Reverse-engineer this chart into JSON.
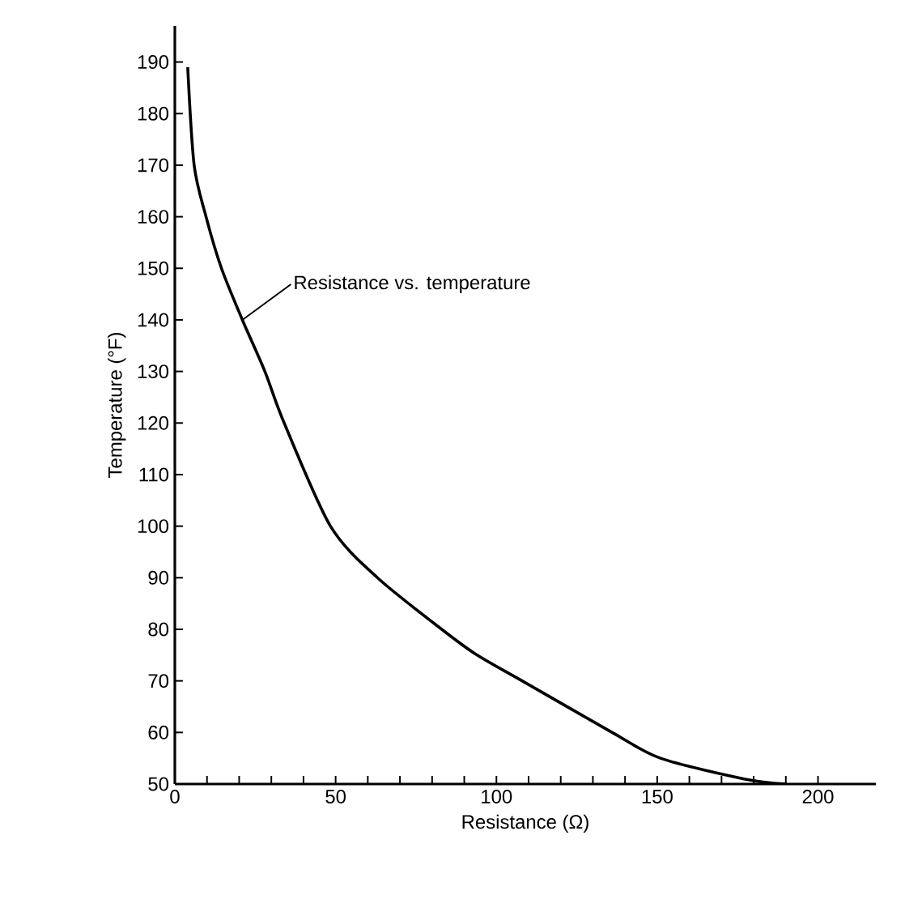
{
  "chart_data": {
    "type": "line",
    "xlabel": "Resistance (Ω)",
    "ylabel": "Temperature (°F)",
    "x": [
      4,
      6,
      9.7,
      14.5,
      21,
      28,
      34,
      48.4,
      63,
      83,
      94,
      108,
      136,
      151,
      177,
      190
    ],
    "series": [
      {
        "color": "#000000",
        "values": [
          189,
          170,
          160,
          150,
          140,
          130,
          120,
          100,
          90,
          80,
          75,
          70,
          60,
          55,
          51,
          50
        ]
      }
    ],
    "xlim": [
      0,
      218
    ],
    "ylim": [
      50,
      197
    ],
    "xticks": [
      0,
      {
        "value": 10,
        "label": null
      },
      {
        "value": 20,
        "label": null
      },
      {
        "value": 30,
        "label": null
      },
      {
        "value": 40,
        "label": null
      },
      50,
      {
        "value": 60,
        "label": null
      },
      {
        "value": 70,
        "label": null
      },
      {
        "value": 80,
        "label": null
      },
      {
        "value": 90,
        "label": null
      },
      100,
      {
        "value": 110,
        "label": null
      },
      {
        "value": 120,
        "label": null
      },
      {
        "value": 130,
        "label": null
      },
      {
        "value": 140,
        "label": null
      },
      150,
      {
        "value": 160,
        "label": null
      },
      {
        "value": 170,
        "label": null
      },
      {
        "value": 180,
        "label": null
      },
      {
        "value": 190,
        "label": null
      },
      200
    ],
    "yticks": [
      50,
      60,
      70,
      80,
      90,
      100,
      110,
      120,
      130,
      140,
      150,
      160,
      170,
      180,
      190
    ],
    "annotations": [
      {
        "text": "Resistance vs. temperature",
        "x": 21,
        "y": 140
      }
    ],
    "grid": false,
    "marker": "none",
    "line_style": "solid"
  }
}
